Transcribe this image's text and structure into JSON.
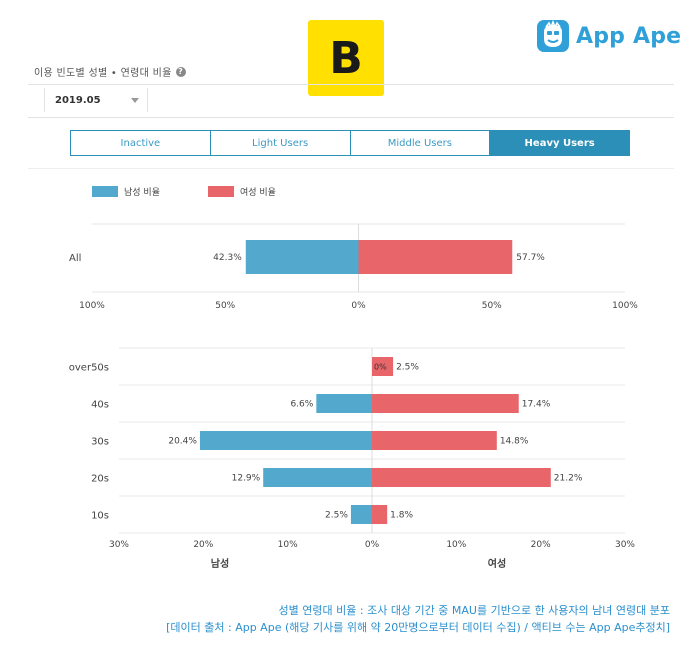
{
  "header": {
    "title": "이용 빈도별 성별 • 연령대 비율",
    "help_icon": "question-circle-icon",
    "brand_b_letter": "B",
    "brand_b_color": "#FFE000",
    "appape_text": "App Ape",
    "appape_color": "#2fa0d8"
  },
  "filter": {
    "month": "2019.05"
  },
  "tabs": [
    {
      "label": "Inactive",
      "active": false
    },
    {
      "label": "Light Users",
      "active": false
    },
    {
      "label": "Middle Users",
      "active": false
    },
    {
      "label": "Heavy Users",
      "active": true
    }
  ],
  "legend": {
    "male_label": "남성 비율",
    "female_label": "여성 비율",
    "male_color": "#52a8cd",
    "female_color": "#e8666a"
  },
  "chart_data": [
    {
      "type": "bar",
      "orientation": "horizontal-diverging",
      "categories": [
        "All"
      ],
      "series": [
        {
          "name": "남성 비율",
          "values": [
            42.3
          ],
          "labels": [
            "42.3%"
          ]
        },
        {
          "name": "여성 비율",
          "values": [
            57.7
          ],
          "labels": [
            "57.7%"
          ]
        }
      ],
      "xlim": [
        -100,
        100
      ],
      "tick_labels": [
        "100%",
        "50%",
        "0%",
        "50%",
        "100%"
      ],
      "grid": true
    },
    {
      "type": "bar",
      "orientation": "horizontal-diverging",
      "categories": [
        "over50s",
        "40s",
        "30s",
        "20s",
        "10s"
      ],
      "series": [
        {
          "name": "남성",
          "values": [
            0,
            6.6,
            20.4,
            12.9,
            2.5
          ],
          "labels": [
            "",
            "6.6%",
            "20.4%",
            "12.9%",
            "2.5%"
          ]
        },
        {
          "name": "여성",
          "values": [
            2.5,
            17.4,
            14.8,
            21.2,
            1.8
          ],
          "labels": [
            "2.5%",
            "17.4%",
            "14.8%",
            "21.2%",
            "1.8%"
          ]
        }
      ],
      "zero_label": "0%",
      "xlim": [
        -30,
        30
      ],
      "tick_labels": [
        "30%",
        "20%",
        "10%",
        "0%",
        "10%",
        "20%",
        "30%"
      ],
      "xlabel_left": "남성",
      "xlabel_right": "여성",
      "grid": true
    }
  ],
  "footer": {
    "line1": "성별 연령대 비율 : 조사 대상 기간 중 MAU를 기반으로 한 사용자의 남녀 연령대 분포",
    "line2": "[데이터 출처 : App Ape (해당 기사를 위해 약 20만명으로부터 데이터 수집) / 액티브 수는 App Ape추정치]"
  }
}
